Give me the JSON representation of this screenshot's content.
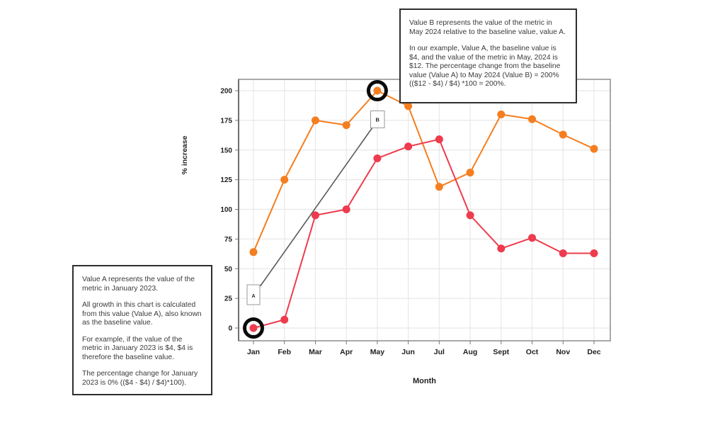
{
  "page": {
    "background": "#ffffff"
  },
  "annotation_box_a": {
    "paragraphs": [
      "Value A represents the value of the metric in January 2023.",
      "All growth in this chart is calculated from this value (Value A), also known as the baseline value.",
      "For example, if the value of the metric in January 2023 is $4, $4 is therefore the baseline value.",
      "The percentage change for January 2023 is 0% (($4 - $4) / $4)*100)."
    ]
  },
  "annotation_box_b": {
    "paragraphs": [
      "Value B represents the value of the metric in May 2024 relative to the baseline value, value A.",
      "In our example, Value A, the baseline value is $4, and the value of the metric in May, 2024 is $12. The percentage change from the baseline value (Value A) to May 2024 (Value B) = 200%  (($12 - $4) / $4) *100 = 200%."
    ]
  },
  "chart_data": {
    "type": "line",
    "title": "",
    "xlabel": "Month",
    "ylabel": "% increase",
    "categories": [
      "Jan",
      "Feb",
      "Mar",
      "Apr",
      "May",
      "Jun",
      "Jul",
      "Aug",
      "Sept",
      "Oct",
      "Nov",
      "Dec"
    ],
    "series": [
      {
        "name": "orange-series",
        "color": "#F57E20",
        "values": [
          64,
          125,
          175,
          171,
          200,
          187,
          119,
          131,
          180,
          176,
          163,
          151
        ]
      },
      {
        "name": "red-series",
        "color": "#EE3B4D",
        "values": [
          0,
          7,
          95,
          100,
          143,
          153,
          159,
          95,
          67,
          76,
          63,
          63
        ]
      }
    ],
    "ylim": [
      0,
      210
    ],
    "yticks": [
      0,
      25,
      50,
      75,
      100,
      125,
      150,
      175,
      200
    ],
    "grid": true,
    "legend": "none",
    "annotations": {
      "point_label_a": "A",
      "point_label_b": "B",
      "circled_points": [
        {
          "series": "red-series",
          "category": "Jan",
          "value": 0
        },
        {
          "series": "orange-series",
          "category": "May",
          "value": 200
        }
      ],
      "connector": "line from label A (Jan, baseline) to label B (May 2024 peak)"
    },
    "colors": {
      "grid": "#e8e8e8",
      "plot_border": "#8c8c8c",
      "axis_line": "#4a4a4a",
      "tick_text": "#1f1f1f",
      "ring": "#0a0a0a",
      "connector": "#5a5a5a"
    }
  }
}
